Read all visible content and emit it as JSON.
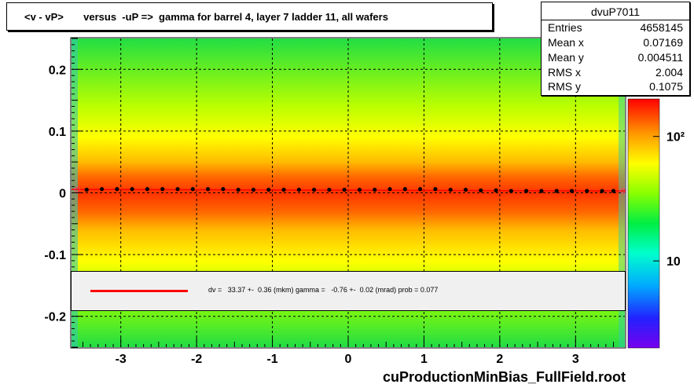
{
  "title": "<v - vP>       versus  -uP =>  gamma for barrel 4, layer 7 ladder 11, all wafers",
  "stats": {
    "name": "dvuP7011",
    "rows": [
      {
        "key": "Entries",
        "value": "4658145"
      },
      {
        "key": "Mean x",
        "value": "0.07169"
      },
      {
        "key": "Mean y",
        "value": "0.004511"
      },
      {
        "key": "RMS x",
        "value": "2.004"
      },
      {
        "key": "RMS y",
        "value": "0.1075"
      }
    ]
  },
  "fit_text": "dv =   33.37 +-  0.36 (mkm) gamma =   -0.76 +-  0.02 (mrad) prob = 0.077",
  "footer": "cuProductionMinBias_FullField.root",
  "colors": {
    "fit_line": "#ff0000",
    "profile_points": "#000000"
  },
  "chart_data": {
    "type": "heatmap",
    "title": "<v - vP>       versus  -uP =>  gamma for barrel 4, layer 7 ladder 11, all wafers",
    "xlim": [
      -3.65,
      3.65
    ],
    "ylim": [
      -0.25,
      0.25
    ],
    "x_ticks": [
      -3,
      -2,
      -1,
      0,
      1,
      2,
      3
    ],
    "y_ticks": [
      -0.2,
      -0.1,
      0,
      0.1,
      0.2
    ],
    "y_tick_labels": [
      "-0.2",
      "-0.1",
      "0",
      "0.1",
      "0.2"
    ],
    "colorbar_labels": [
      "10",
      "10²"
    ],
    "colorbar_label_values": [
      10,
      100
    ],
    "colorbar_range": [
      2,
      200
    ],
    "grid": true,
    "profile_points": [
      {
        "x": -3.45,
        "y": 0.005
      },
      {
        "x": -3.25,
        "y": 0.006
      },
      {
        "x": -3.05,
        "y": 0.006
      },
      {
        "x": -2.85,
        "y": 0.006
      },
      {
        "x": -2.65,
        "y": 0.006
      },
      {
        "x": -2.45,
        "y": 0.006
      },
      {
        "x": -2.25,
        "y": 0.006
      },
      {
        "x": -2.05,
        "y": 0.006
      },
      {
        "x": -1.85,
        "y": 0.006
      },
      {
        "x": -1.65,
        "y": 0.006
      },
      {
        "x": -1.45,
        "y": 0.005
      },
      {
        "x": -1.25,
        "y": 0.005
      },
      {
        "x": -1.05,
        "y": 0.005
      },
      {
        "x": -0.85,
        "y": 0.005
      },
      {
        "x": -0.65,
        "y": 0.005
      },
      {
        "x": -0.45,
        "y": 0.005
      },
      {
        "x": -0.25,
        "y": 0.005
      },
      {
        "x": -0.05,
        "y": 0.005
      },
      {
        "x": 0.15,
        "y": 0.005
      },
      {
        "x": 0.35,
        "y": 0.005
      },
      {
        "x": 0.55,
        "y": 0.006
      },
      {
        "x": 0.75,
        "y": 0.006
      },
      {
        "x": 0.95,
        "y": 0.006
      },
      {
        "x": 1.15,
        "y": 0.006
      },
      {
        "x": 1.35,
        "y": 0.005
      },
      {
        "x": 1.55,
        "y": 0.005
      },
      {
        "x": 1.75,
        "y": 0.004
      },
      {
        "x": 1.95,
        "y": 0.004
      },
      {
        "x": 2.15,
        "y": 0.003
      },
      {
        "x": 2.35,
        "y": 0.003
      },
      {
        "x": 2.55,
        "y": 0.003
      },
      {
        "x": 2.75,
        "y": 0.003
      },
      {
        "x": 2.95,
        "y": 0.003
      },
      {
        "x": 3.15,
        "y": 0.003
      },
      {
        "x": 3.35,
        "y": 0.003
      },
      {
        "x": 3.5,
        "y": 0.003
      }
    ],
    "fit": {
      "dv_mkm": 33.37,
      "dv_err": 0.36,
      "gamma_mrad": -0.76,
      "gamma_err": 0.02,
      "prob": 0.077
    }
  }
}
